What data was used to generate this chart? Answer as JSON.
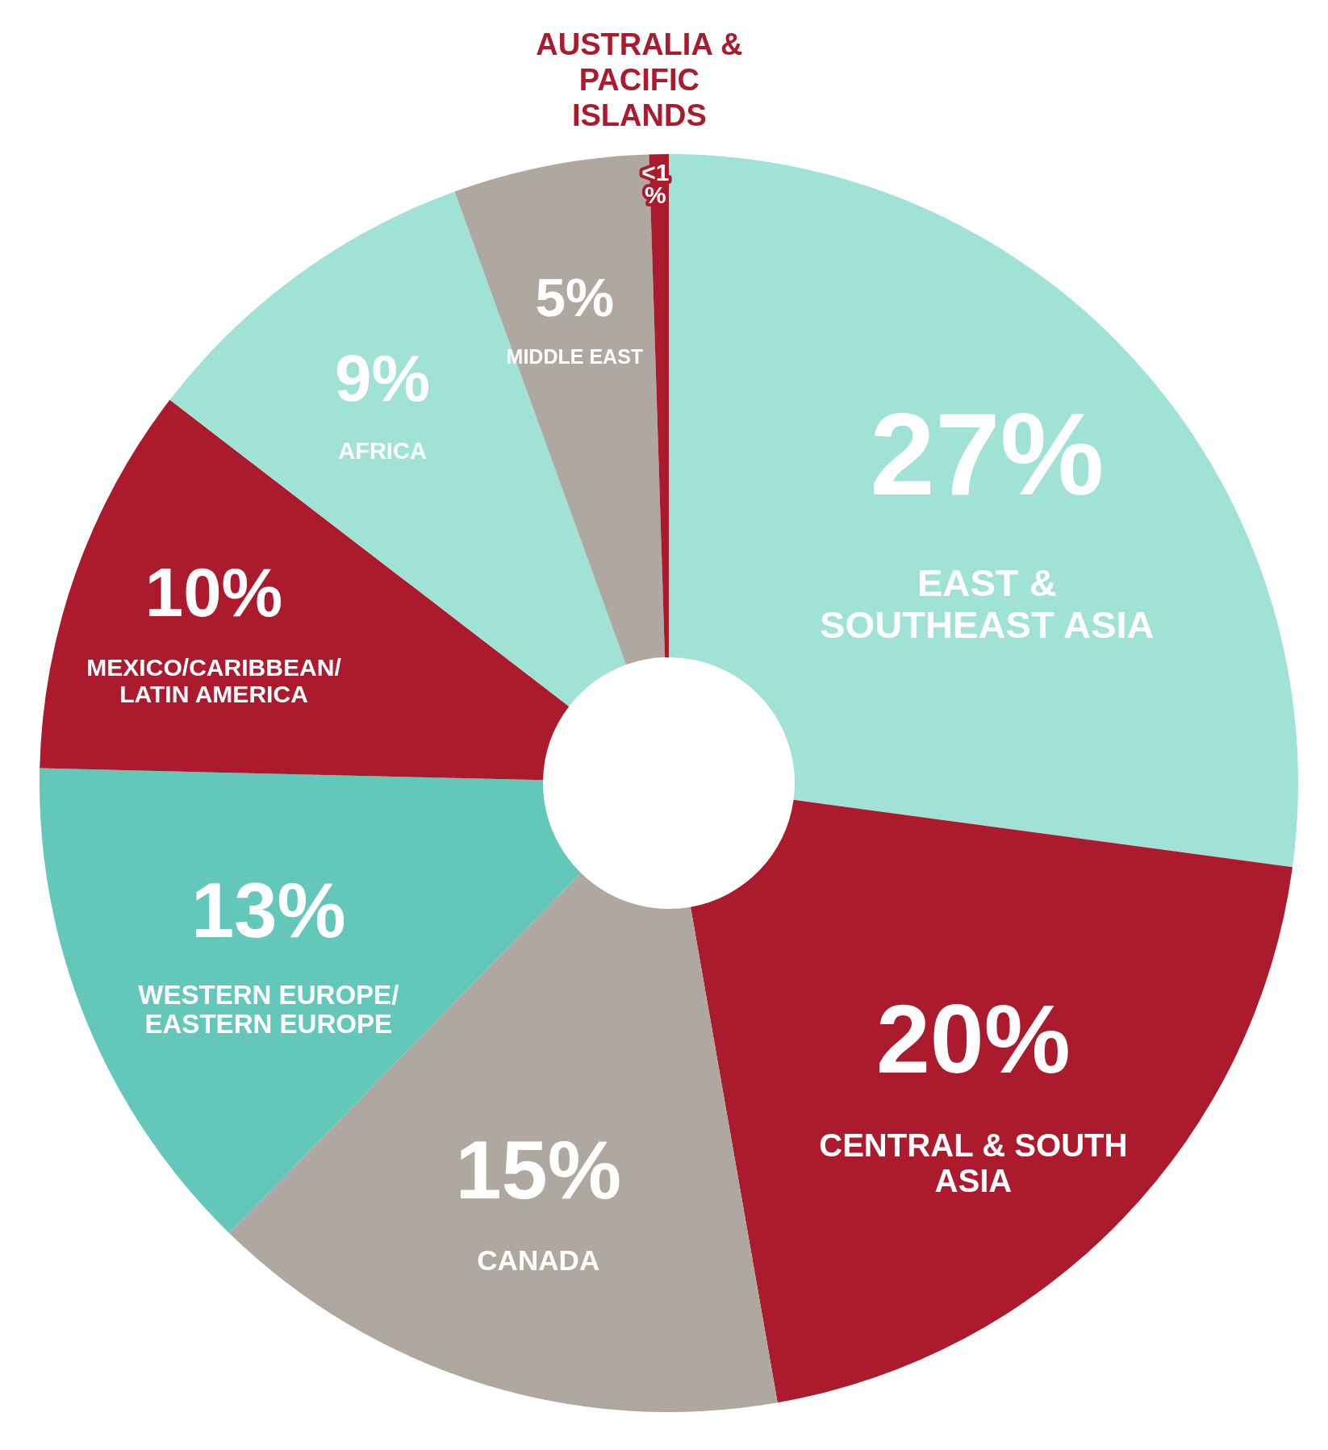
{
  "chart_data": {
    "type": "donut",
    "categories": [
      "EAST & SOUTHEAST ASIA",
      "CENTRAL & SOUTH ASIA",
      "CANADA",
      "WESTERN EUROPE/EASTERN EUROPE",
      "MEXICO/CARIBBEAN/LATIN AMERICA",
      "AFRICA",
      "MIDDLE EAST",
      "AUSTRALIA & PACIFIC ISLANDS"
    ],
    "values": [
      27,
      20,
      15,
      13,
      10,
      9,
      5,
      0.5
    ],
    "value_labels": [
      "27%",
      "20%",
      "15%",
      "13%",
      "10%",
      "9%",
      "5%",
      "<1%"
    ],
    "colors": [
      "#a0e2d6",
      "#ab1a2d",
      "#aea8a1",
      "#63c8b9",
      "#ab1a2d",
      "#a0e2d6",
      "#aea8a1",
      "#ab1a2d"
    ],
    "legend": false
  }
}
